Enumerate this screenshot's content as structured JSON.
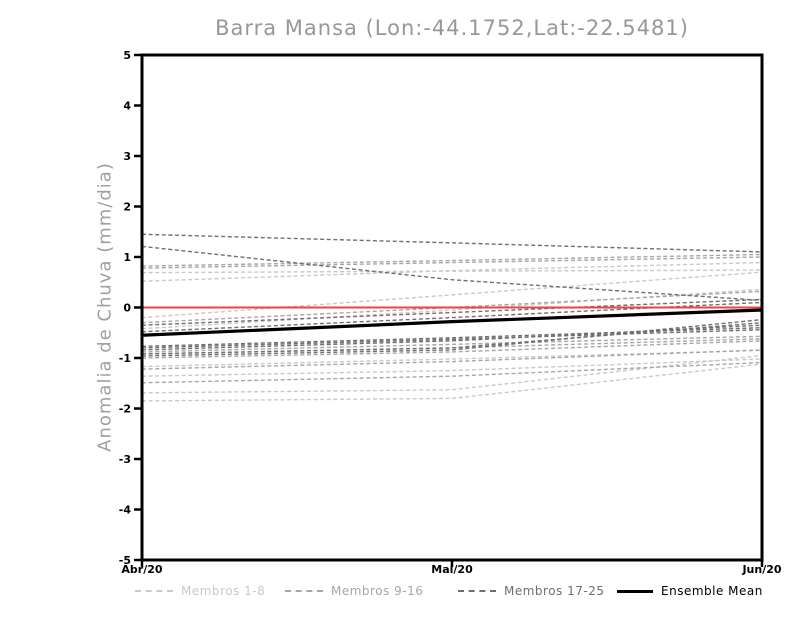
{
  "chart_data": {
    "type": "line",
    "title": "Barra Mansa (Lon:-44.1752,Lat:-22.5481)",
    "ylabel": "Anomalia de Chuva (mm/dia)",
    "xlabel": "",
    "ylim": [
      -5,
      5
    ],
    "y_ticks": [
      5,
      4,
      3,
      2,
      1,
      0,
      -1,
      -2,
      -3,
      -4,
      -5
    ],
    "x_tick_labels": [
      "Abr/20",
      "Mai/20",
      "Jun/20"
    ],
    "x_positions": [
      0,
      0.5,
      1
    ],
    "grid": false,
    "legend_position": "bottom",
    "axis_color": "#000000",
    "title_color": "#979797",
    "zero_line": {
      "value": 0,
      "color": "#ee4343"
    },
    "groups": [
      {
        "name": "Membros 1-8",
        "color": "#c9c9c9",
        "style": "dashed"
      },
      {
        "name": "Membros 9-16",
        "color": "#a6a6a6",
        "style": "dashed"
      },
      {
        "name": "Membros 17-25",
        "color": "#6f6f6f",
        "style": "dashed"
      },
      {
        "name": "Ensemble Mean",
        "color": "#000000",
        "style": "solid"
      }
    ],
    "series": [
      {
        "name": "member-1",
        "group": 0,
        "values": [
          0.69,
          0.72,
          0.74
        ]
      },
      {
        "name": "member-2",
        "group": 0,
        "values": [
          0.52,
          0.73,
          0.89
        ]
      },
      {
        "name": "member-3",
        "group": 0,
        "values": [
          -0.2,
          0.25,
          0.7
        ]
      },
      {
        "name": "member-4",
        "group": 0,
        "values": [
          -0.42,
          -0.05,
          0.36
        ]
      },
      {
        "name": "member-5",
        "group": 0,
        "values": [
          -1.17,
          -1.02,
          -0.85
        ]
      },
      {
        "name": "member-6",
        "group": 0,
        "values": [
          -1.36,
          -1.25,
          -1.02
        ]
      },
      {
        "name": "member-7",
        "group": 0,
        "values": [
          -1.69,
          -1.63,
          -0.95
        ]
      },
      {
        "name": "member-8",
        "group": 0,
        "values": [
          -1.85,
          -1.8,
          -1.12
        ]
      },
      {
        "name": "member-9",
        "group": 1,
        "values": [
          0.82,
          0.93,
          1.05
        ]
      },
      {
        "name": "member-10",
        "group": 1,
        "values": [
          0.78,
          0.89,
          1.0
        ]
      },
      {
        "name": "member-11",
        "group": 1,
        "values": [
          -0.3,
          0.0,
          0.32
        ]
      },
      {
        "name": "member-12",
        "group": 1,
        "values": [
          -0.88,
          -0.73,
          -0.57
        ]
      },
      {
        "name": "member-13",
        "group": 1,
        "values": [
          -0.92,
          -0.8,
          -0.62
        ]
      },
      {
        "name": "member-14",
        "group": 1,
        "values": [
          -1.0,
          -0.88,
          -0.66
        ]
      },
      {
        "name": "member-15",
        "group": 1,
        "values": [
          -1.22,
          -1.07,
          -0.84
        ]
      },
      {
        "name": "member-16",
        "group": 1,
        "values": [
          -1.49,
          -1.36,
          -1.09
        ]
      },
      {
        "name": "member-17",
        "group": 2,
        "values": [
          1.45,
          1.28,
          1.1
        ]
      },
      {
        "name": "member-18",
        "group": 2,
        "values": [
          1.21,
          0.55,
          0.14
        ]
      },
      {
        "name": "member-19",
        "group": 2,
        "values": [
          -0.35,
          -0.1,
          0.16
        ]
      },
      {
        "name": "member-20",
        "group": 2,
        "values": [
          -0.48,
          -0.2,
          0.1
        ]
      },
      {
        "name": "member-21",
        "group": 2,
        "values": [
          -0.77,
          -0.6,
          -0.4
        ]
      },
      {
        "name": "member-22",
        "group": 2,
        "values": [
          -0.8,
          -0.63,
          -0.44
        ]
      },
      {
        "name": "member-23",
        "group": 2,
        "values": [
          -0.84,
          -0.66,
          -0.35
        ]
      },
      {
        "name": "member-24",
        "group": 2,
        "values": [
          -0.92,
          -0.8,
          -0.3
        ]
      },
      {
        "name": "member-25",
        "group": 2,
        "values": [
          -0.96,
          -0.84,
          -0.24
        ]
      },
      {
        "name": "ensemble-mean",
        "group": 3,
        "values": [
          -0.55,
          -0.28,
          -0.05
        ]
      }
    ]
  }
}
